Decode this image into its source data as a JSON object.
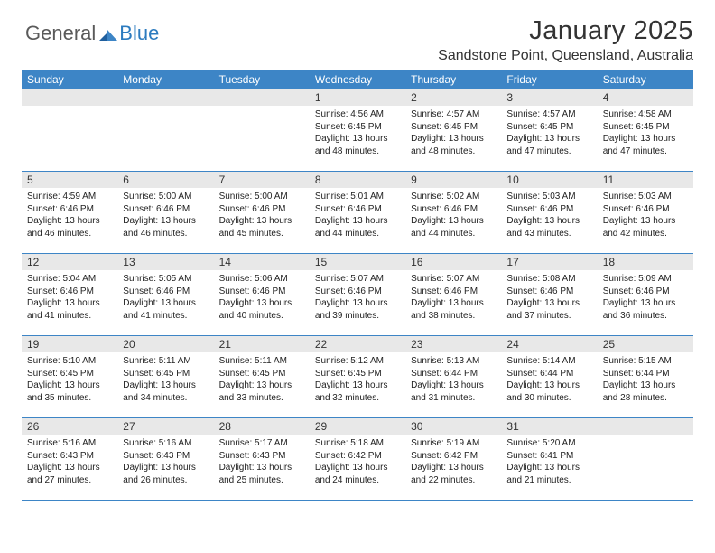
{
  "brand": {
    "general": "General",
    "blue": "Blue"
  },
  "title": "January 2025",
  "location": "Sandstone Point, Queensland, Australia",
  "colors": {
    "header_bar": "#3d85c6",
    "daynum_bg": "#e8e8e8",
    "text": "#333333",
    "brand_gray": "#5a5a5a",
    "brand_blue": "#2c7bbf",
    "row_border": "#3d85c6"
  },
  "days_of_week": [
    "Sunday",
    "Monday",
    "Tuesday",
    "Wednesday",
    "Thursday",
    "Friday",
    "Saturday"
  ],
  "weeks": [
    [
      {
        "empty": true
      },
      {
        "empty": true
      },
      {
        "empty": true
      },
      {
        "d": "1",
        "sr": "Sunrise: 4:56 AM",
        "ss": "Sunset: 6:45 PM",
        "dl1": "Daylight: 13 hours",
        "dl2": "and 48 minutes."
      },
      {
        "d": "2",
        "sr": "Sunrise: 4:57 AM",
        "ss": "Sunset: 6:45 PM",
        "dl1": "Daylight: 13 hours",
        "dl2": "and 48 minutes."
      },
      {
        "d": "3",
        "sr": "Sunrise: 4:57 AM",
        "ss": "Sunset: 6:45 PM",
        "dl1": "Daylight: 13 hours",
        "dl2": "and 47 minutes."
      },
      {
        "d": "4",
        "sr": "Sunrise: 4:58 AM",
        "ss": "Sunset: 6:45 PM",
        "dl1": "Daylight: 13 hours",
        "dl2": "and 47 minutes."
      }
    ],
    [
      {
        "d": "5",
        "sr": "Sunrise: 4:59 AM",
        "ss": "Sunset: 6:46 PM",
        "dl1": "Daylight: 13 hours",
        "dl2": "and 46 minutes."
      },
      {
        "d": "6",
        "sr": "Sunrise: 5:00 AM",
        "ss": "Sunset: 6:46 PM",
        "dl1": "Daylight: 13 hours",
        "dl2": "and 46 minutes."
      },
      {
        "d": "7",
        "sr": "Sunrise: 5:00 AM",
        "ss": "Sunset: 6:46 PM",
        "dl1": "Daylight: 13 hours",
        "dl2": "and 45 minutes."
      },
      {
        "d": "8",
        "sr": "Sunrise: 5:01 AM",
        "ss": "Sunset: 6:46 PM",
        "dl1": "Daylight: 13 hours",
        "dl2": "and 44 minutes."
      },
      {
        "d": "9",
        "sr": "Sunrise: 5:02 AM",
        "ss": "Sunset: 6:46 PM",
        "dl1": "Daylight: 13 hours",
        "dl2": "and 44 minutes."
      },
      {
        "d": "10",
        "sr": "Sunrise: 5:03 AM",
        "ss": "Sunset: 6:46 PM",
        "dl1": "Daylight: 13 hours",
        "dl2": "and 43 minutes."
      },
      {
        "d": "11",
        "sr": "Sunrise: 5:03 AM",
        "ss": "Sunset: 6:46 PM",
        "dl1": "Daylight: 13 hours",
        "dl2": "and 42 minutes."
      }
    ],
    [
      {
        "d": "12",
        "sr": "Sunrise: 5:04 AM",
        "ss": "Sunset: 6:46 PM",
        "dl1": "Daylight: 13 hours",
        "dl2": "and 41 minutes."
      },
      {
        "d": "13",
        "sr": "Sunrise: 5:05 AM",
        "ss": "Sunset: 6:46 PM",
        "dl1": "Daylight: 13 hours",
        "dl2": "and 41 minutes."
      },
      {
        "d": "14",
        "sr": "Sunrise: 5:06 AM",
        "ss": "Sunset: 6:46 PM",
        "dl1": "Daylight: 13 hours",
        "dl2": "and 40 minutes."
      },
      {
        "d": "15",
        "sr": "Sunrise: 5:07 AM",
        "ss": "Sunset: 6:46 PM",
        "dl1": "Daylight: 13 hours",
        "dl2": "and 39 minutes."
      },
      {
        "d": "16",
        "sr": "Sunrise: 5:07 AM",
        "ss": "Sunset: 6:46 PM",
        "dl1": "Daylight: 13 hours",
        "dl2": "and 38 minutes."
      },
      {
        "d": "17",
        "sr": "Sunrise: 5:08 AM",
        "ss": "Sunset: 6:46 PM",
        "dl1": "Daylight: 13 hours",
        "dl2": "and 37 minutes."
      },
      {
        "d": "18",
        "sr": "Sunrise: 5:09 AM",
        "ss": "Sunset: 6:46 PM",
        "dl1": "Daylight: 13 hours",
        "dl2": "and 36 minutes."
      }
    ],
    [
      {
        "d": "19",
        "sr": "Sunrise: 5:10 AM",
        "ss": "Sunset: 6:45 PM",
        "dl1": "Daylight: 13 hours",
        "dl2": "and 35 minutes."
      },
      {
        "d": "20",
        "sr": "Sunrise: 5:11 AM",
        "ss": "Sunset: 6:45 PM",
        "dl1": "Daylight: 13 hours",
        "dl2": "and 34 minutes."
      },
      {
        "d": "21",
        "sr": "Sunrise: 5:11 AM",
        "ss": "Sunset: 6:45 PM",
        "dl1": "Daylight: 13 hours",
        "dl2": "and 33 minutes."
      },
      {
        "d": "22",
        "sr": "Sunrise: 5:12 AM",
        "ss": "Sunset: 6:45 PM",
        "dl1": "Daylight: 13 hours",
        "dl2": "and 32 minutes."
      },
      {
        "d": "23",
        "sr": "Sunrise: 5:13 AM",
        "ss": "Sunset: 6:44 PM",
        "dl1": "Daylight: 13 hours",
        "dl2": "and 31 minutes."
      },
      {
        "d": "24",
        "sr": "Sunrise: 5:14 AM",
        "ss": "Sunset: 6:44 PM",
        "dl1": "Daylight: 13 hours",
        "dl2": "and 30 minutes."
      },
      {
        "d": "25",
        "sr": "Sunrise: 5:15 AM",
        "ss": "Sunset: 6:44 PM",
        "dl1": "Daylight: 13 hours",
        "dl2": "and 28 minutes."
      }
    ],
    [
      {
        "d": "26",
        "sr": "Sunrise: 5:16 AM",
        "ss": "Sunset: 6:43 PM",
        "dl1": "Daylight: 13 hours",
        "dl2": "and 27 minutes."
      },
      {
        "d": "27",
        "sr": "Sunrise: 5:16 AM",
        "ss": "Sunset: 6:43 PM",
        "dl1": "Daylight: 13 hours",
        "dl2": "and 26 minutes."
      },
      {
        "d": "28",
        "sr": "Sunrise: 5:17 AM",
        "ss": "Sunset: 6:43 PM",
        "dl1": "Daylight: 13 hours",
        "dl2": "and 25 minutes."
      },
      {
        "d": "29",
        "sr": "Sunrise: 5:18 AM",
        "ss": "Sunset: 6:42 PM",
        "dl1": "Daylight: 13 hours",
        "dl2": "and 24 minutes."
      },
      {
        "d": "30",
        "sr": "Sunrise: 5:19 AM",
        "ss": "Sunset: 6:42 PM",
        "dl1": "Daylight: 13 hours",
        "dl2": "and 22 minutes."
      },
      {
        "d": "31",
        "sr": "Sunrise: 5:20 AM",
        "ss": "Sunset: 6:41 PM",
        "dl1": "Daylight: 13 hours",
        "dl2": "and 21 minutes."
      },
      {
        "empty": true
      }
    ]
  ]
}
